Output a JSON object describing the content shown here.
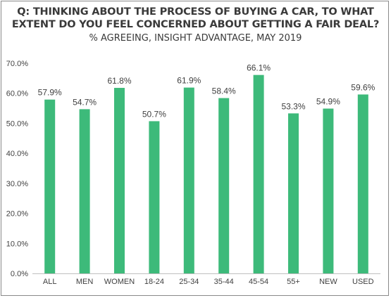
{
  "chart_data": {
    "type": "bar",
    "title_lines": [
      "Q: THINKING ABOUT THE PROCESS OF BUYING A CAR, TO WHAT",
      "EXTENT DO YOU FEEL CONCERNED ABOUT GETTING A FAIR DEAL?"
    ],
    "subtitle": "% AGREEING, INSIGHT ADVANTAGE, MAY 2019",
    "categories": [
      "ALL",
      "MEN",
      "WOMEN",
      "18-24",
      "25-34",
      "35-44",
      "45-54",
      "55+",
      "NEW",
      "USED"
    ],
    "values": [
      57.9,
      54.7,
      61.8,
      50.7,
      61.9,
      58.4,
      66.1,
      53.3,
      54.9,
      59.6
    ],
    "data_labels": [
      "57.9%",
      "54.7%",
      "61.8%",
      "50.7%",
      "61.9%",
      "58.4%",
      "66.1%",
      "53.3%",
      "54.9%",
      "59.6%"
    ],
    "ylim": [
      0,
      70
    ],
    "yticks": [
      0,
      10,
      20,
      30,
      40,
      50,
      60,
      70
    ],
    "ytick_labels": [
      "0.0%",
      "10.0%",
      "20.0%",
      "30.0%",
      "40.0%",
      "50.0%",
      "60.0%",
      "70.0%"
    ],
    "xlabel": "",
    "ylabel": "",
    "grid": false,
    "legend": "none",
    "bar_color": "#3dba7a"
  }
}
